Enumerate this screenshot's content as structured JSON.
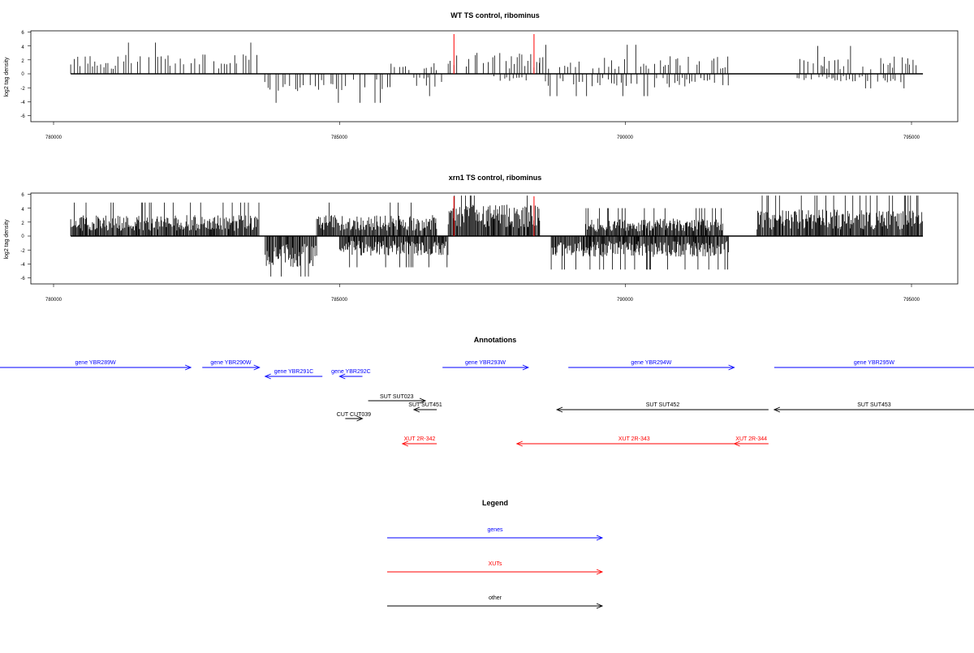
{
  "chart_data": [
    {
      "type": "bar",
      "title": "WT TS control, ribominus",
      "xlabel": "",
      "ylabel": "log2 tag density",
      "xlim": [
        779600,
        796600
      ],
      "ylim": [
        -7,
        6
      ],
      "x_ticks": [
        780000,
        785000,
        790000,
        795000
      ],
      "x_tick_labels": [
        "780000",
        "785000",
        "790000",
        "795000"
      ],
      "y_ticks": [
        6,
        4,
        2,
        0,
        -2,
        -4,
        -6
      ],
      "y_tick_labels": [
        "6",
        "4",
        "2",
        "0",
        "-2",
        "-4",
        "-6"
      ],
      "marker_positions": [
        787000,
        788400
      ],
      "marker_color": "#ff0000",
      "bar_color": "#000000",
      "density": "sparse",
      "segments": [
        {
          "x": [
            780300,
            783600
          ],
          "sign": 1,
          "amp": 2.8
        },
        {
          "x": [
            783600,
            785900
          ],
          "sign": -1,
          "amp": 2.6
        },
        {
          "x": [
            785900,
            786700
          ],
          "sign": 1,
          "amp": 1.6
        },
        {
          "x": [
            786300,
            786800
          ],
          "sign": -1,
          "amp": 2.0
        },
        {
          "x": [
            786900,
            788500
          ],
          "sign": 1,
          "amp": 3.0
        },
        {
          "x": [
            787700,
            788300
          ],
          "sign": -1,
          "amp": 1.2
        },
        {
          "x": [
            788500,
            791800
          ],
          "sign": 1,
          "amp": 2.6
        },
        {
          "x": [
            788600,
            791800
          ],
          "sign": -1,
          "amp": 2.0
        },
        {
          "x": [
            793000,
            795200
          ],
          "sign": 1,
          "amp": 2.5
        },
        {
          "x": [
            793000,
            795000
          ],
          "sign": -1,
          "amp": 1.3
        }
      ]
    },
    {
      "type": "bar",
      "title": "xrn1 TS control, ribominus",
      "xlabel": "",
      "ylabel": "log2 tag density",
      "xlim": [
        779600,
        796600
      ],
      "ylim": [
        -7,
        6
      ],
      "x_ticks": [
        780000,
        785000,
        790000,
        795000
      ],
      "x_tick_labels": [
        "780000",
        "785000",
        "790000",
        "795000"
      ],
      "y_ticks": [
        6,
        4,
        2,
        0,
        -2,
        -4,
        -6
      ],
      "y_tick_labels": [
        "6",
        "4",
        "2",
        "0",
        "-2",
        "-4",
        "-6"
      ],
      "marker_positions": [
        787000,
        788400
      ],
      "marker_color": "#ff0000",
      "bar_color": "#000000",
      "density": "dense",
      "segments": [
        {
          "x": [
            780300,
            783600
          ],
          "sign": 1,
          "amp": 3.0
        },
        {
          "x": [
            783700,
            784600
          ],
          "sign": -1,
          "amp": 4.5
        },
        {
          "x": [
            784600,
            786700
          ],
          "sign": 1,
          "amp": 3.0
        },
        {
          "x": [
            785000,
            786900
          ],
          "sign": -1,
          "amp": 2.8
        },
        {
          "x": [
            786900,
            788500
          ],
          "sign": 1,
          "amp": 4.5
        },
        {
          "x": [
            788700,
            791800
          ],
          "sign": -1,
          "amp": 3.0
        },
        {
          "x": [
            789300,
            791700
          ],
          "sign": 1,
          "amp": 2.5
        },
        {
          "x": [
            792300,
            795200
          ],
          "sign": 1,
          "amp": 3.8
        }
      ]
    }
  ],
  "annotations": {
    "title": "Annotations",
    "features": [
      {
        "label": "gene YBR289W",
        "kind": "gene",
        "start": 779000,
        "end": 782400,
        "strand": "+"
      },
      {
        "label": "gene YBR290W",
        "kind": "gene",
        "start": 782600,
        "end": 783600,
        "strand": "+"
      },
      {
        "label": "gene YBR291C",
        "kind": "gene",
        "start": 783700,
        "end": 784700,
        "strand": "-"
      },
      {
        "label": "gene YBR292C",
        "kind": "gene",
        "start": 785000,
        "end": 785400,
        "strand": "-"
      },
      {
        "label": "gene YBR293W",
        "kind": "gene",
        "start": 786800,
        "end": 788300,
        "strand": "+"
      },
      {
        "label": "gene YBR294W",
        "kind": "gene",
        "start": 789000,
        "end": 791900,
        "strand": "+"
      },
      {
        "label": "gene YBR295W",
        "kind": "gene",
        "start": 792600,
        "end": 796600,
        "strand": "+"
      },
      {
        "label": "SUT SUT023",
        "kind": "other",
        "start": 785500,
        "end": 786500,
        "strand": "+"
      },
      {
        "label": "SUT SUT451",
        "kind": "other",
        "start": 786300,
        "end": 786700,
        "strand": "-"
      },
      {
        "label": "SUT SUT452",
        "kind": "other",
        "start": 788800,
        "end": 792500,
        "strand": "-"
      },
      {
        "label": "SUT SUT453",
        "kind": "other",
        "start": 792600,
        "end": 796600,
        "strand": "-"
      },
      {
        "label": "CUT CUT039",
        "kind": "other",
        "start": 785100,
        "end": 785400,
        "strand": "+"
      },
      {
        "label": "XUT 2R-342",
        "kind": "xut",
        "start": 786100,
        "end": 786700,
        "strand": "-"
      },
      {
        "label": "XUT 2R-343",
        "kind": "xut",
        "start": 788100,
        "end": 792200,
        "strand": "-"
      },
      {
        "label": "XUT 2R-344",
        "kind": "xut",
        "start": 791900,
        "end": 792500,
        "strand": "-"
      }
    ]
  },
  "legend": {
    "title": "Legend",
    "items": [
      {
        "label": "genes",
        "kind": "gene"
      },
      {
        "label": "XUTs",
        "kind": "xut"
      },
      {
        "label": "other",
        "kind": "other"
      }
    ]
  },
  "colors": {
    "gene": "#0000ff",
    "xut": "#ff0000",
    "other": "#000000"
  }
}
